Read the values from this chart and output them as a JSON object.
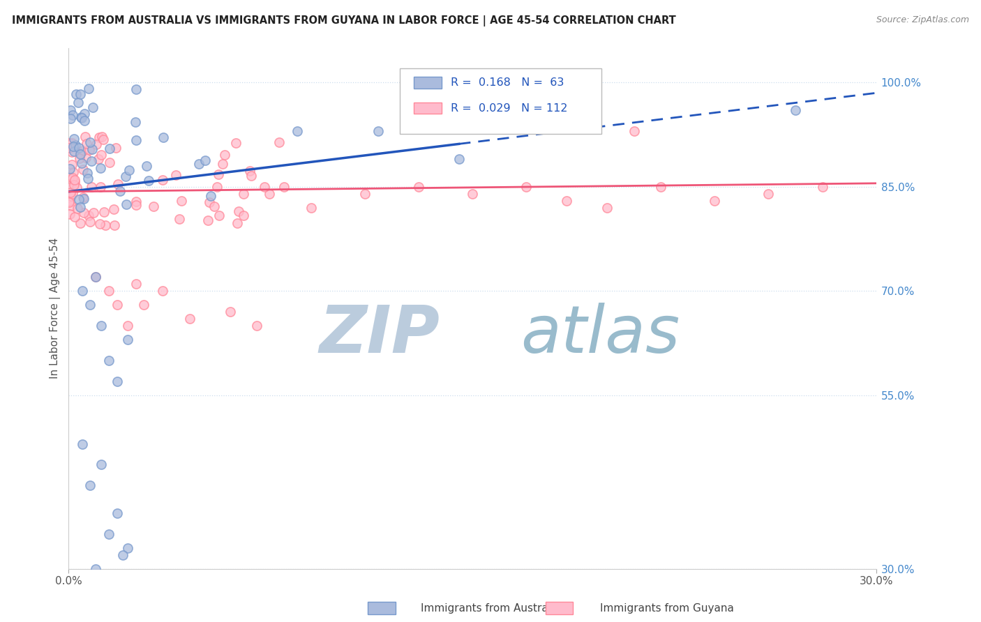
{
  "title": "IMMIGRANTS FROM AUSTRALIA VS IMMIGRANTS FROM GUYANA IN LABOR FORCE | AGE 45-54 CORRELATION CHART",
  "source": "Source: ZipAtlas.com",
  "ylabel": "In Labor Force | Age 45-54",
  "xlim": [
    0.0,
    0.3
  ],
  "ylim": [
    0.3,
    1.05
  ],
  "y_tick_labels_right": [
    "100.0%",
    "85.0%",
    "70.0%",
    "55.0%",
    "30.0%"
  ],
  "y_tick_values_right": [
    1.0,
    0.85,
    0.7,
    0.55,
    0.3
  ],
  "legend_line1": "R =  0.168   N =  63",
  "legend_line2": "R =  0.029   N = 112",
  "color_australia_fill": "#AABBDD",
  "color_australia_edge": "#7799CC",
  "color_guyana_fill": "#FFBBCC",
  "color_guyana_edge": "#FF8899",
  "color_trendline_australia": "#2255BB",
  "color_trendline_guyana": "#EE5577",
  "watermark_zip_color": "#BBCCDD",
  "watermark_atlas_color": "#99BBCC",
  "grid_color": "#CCDDEE",
  "aus_trend_x": [
    0.0,
    0.145,
    0.3
  ],
  "aus_trend_y_solid_end": 0.145,
  "guy_trend_x": [
    0.0,
    0.3
  ],
  "guy_trend_y": [
    0.843,
    0.855
  ]
}
